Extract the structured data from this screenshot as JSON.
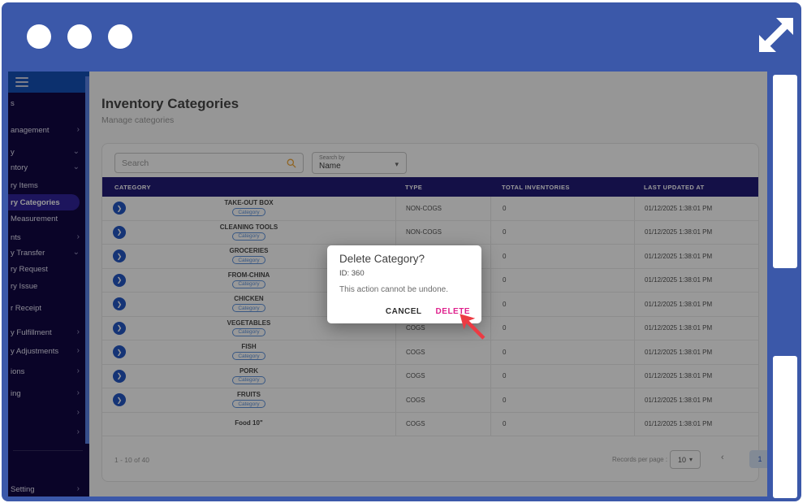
{
  "window": {
    "dots": [
      "dot",
      "dot",
      "dot"
    ],
    "expand_icon": "expand-diagonal-arrows"
  },
  "sidebar": {
    "menu_icon": "hamburger-menu",
    "items": [
      {
        "label": "s",
        "caret": "",
        "active": false
      },
      {
        "label": "anagement",
        "caret": "chevron-right",
        "active": false
      },
      {
        "label": "y",
        "caret": "chevron-down",
        "active": false
      },
      {
        "label": "ntory",
        "caret": "chevron-down",
        "active": false
      },
      {
        "label": "ry Items",
        "caret": "",
        "active": false
      },
      {
        "label": "ry Categories",
        "caret": "",
        "active": true
      },
      {
        "label": "Measurement",
        "caret": "",
        "active": false
      },
      {
        "label": "nts",
        "caret": "chevron-right",
        "active": false
      },
      {
        "label": "y Transfer",
        "caret": "chevron-down",
        "active": false
      },
      {
        "label": "ry Request",
        "caret": "",
        "active": false
      },
      {
        "label": "ry Issue",
        "caret": "",
        "active": false
      },
      {
        "label": "r Receipt",
        "caret": "",
        "active": false
      },
      {
        "label": "y Fulfillment",
        "caret": "chevron-right",
        "active": false
      },
      {
        "label": "y Adjustments",
        "caret": "chevron-right",
        "active": false
      },
      {
        "label": "ions",
        "caret": "chevron-right",
        "active": false
      },
      {
        "label": "ing",
        "caret": "chevron-right",
        "active": false
      },
      {
        "label": "",
        "caret": "chevron-right",
        "active": false
      },
      {
        "label": "",
        "caret": "chevron-right",
        "active": false
      },
      {
        "label": "Setting",
        "caret": "chevron-right",
        "active": false
      }
    ]
  },
  "header": {
    "title": "Inventory Categories",
    "subtitle": "Manage categories"
  },
  "toolbar": {
    "search_placeholder": "Search",
    "search_icon": "magnifier",
    "search_icon_color": "#f0a73a",
    "search_by_label": "Search by",
    "search_by_value": "Name"
  },
  "table": {
    "columns": [
      "CATEGORY",
      "TYPE",
      "TOTAL INVENTORIES",
      "LAST UPDATED AT"
    ],
    "chip_label": "Category",
    "rows": [
      {
        "name": "TAKE-OUT BOX",
        "chip": true,
        "expand": true,
        "type": "NON-COGS",
        "total": "0",
        "updated": "01/12/2025 1:38:01 PM"
      },
      {
        "name": "CLEANING TOOLS",
        "chip": true,
        "expand": true,
        "type": "NON-COGS",
        "total": "0",
        "updated": "01/12/2025 1:38:01 PM"
      },
      {
        "name": "GROCERIES",
        "chip": true,
        "expand": true,
        "type": "",
        "total": "0",
        "updated": "01/12/2025 1:38:01 PM"
      },
      {
        "name": "FROM-CHINA",
        "chip": true,
        "expand": true,
        "type": "",
        "total": "0",
        "updated": "01/12/2025 1:38:01 PM"
      },
      {
        "name": "CHICKEN",
        "chip": true,
        "expand": true,
        "type": "",
        "total": "0",
        "updated": "01/12/2025 1:38:01 PM"
      },
      {
        "name": "VEGETABLES",
        "chip": true,
        "expand": true,
        "type": "COGS",
        "total": "0",
        "updated": "01/12/2025 1:38:01 PM"
      },
      {
        "name": "FISH",
        "chip": true,
        "expand": true,
        "type": "COGS",
        "total": "0",
        "updated": "01/12/2025 1:38:01 PM"
      },
      {
        "name": "PORK",
        "chip": true,
        "expand": true,
        "type": "COGS",
        "total": "0",
        "updated": "01/12/2025 1:38:01 PM"
      },
      {
        "name": "FRUITS",
        "chip": true,
        "expand": true,
        "type": "COGS",
        "total": "0",
        "updated": "01/12/2025 1:38:01 PM"
      },
      {
        "name": "Food 10\"",
        "chip": false,
        "expand": false,
        "type": "COGS",
        "total": "0",
        "updated": "01/12/2025 1:38:01 PM"
      }
    ]
  },
  "pagination": {
    "range": "1 - 10 of 40",
    "records_label": "Records per page :",
    "records_value": "10",
    "prev_icon": "chevron-left",
    "page": "1"
  },
  "modal": {
    "title": "Delete Category?",
    "id_line": "ID: 360",
    "body": "This action cannot be undone.",
    "cancel_label": "CANCEL",
    "delete_label": "DELETE",
    "delete_color": "#df1f8c",
    "cursor_icon": "red-arrow-pointer",
    "cursor_color": "#ec3b43"
  }
}
